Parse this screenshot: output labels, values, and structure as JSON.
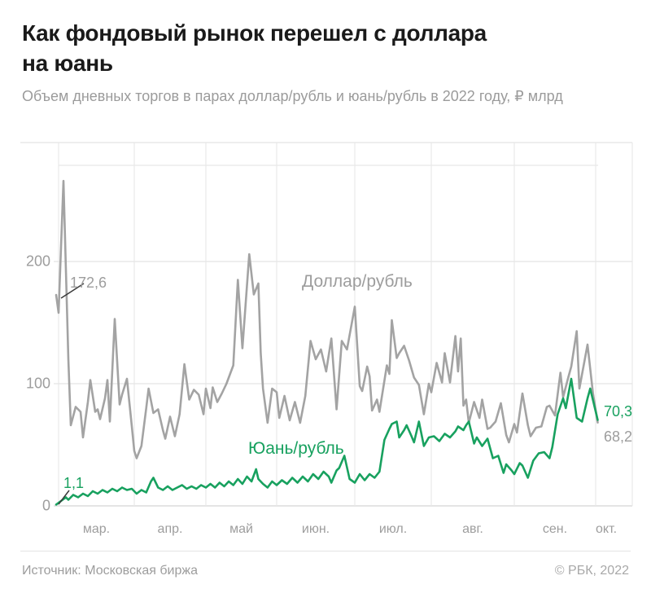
{
  "header": {
    "title_line1": "Как фондовый рынок перешел с доллара",
    "title_line2": "на юань",
    "subtitle": "Объем дневных торгов в парах доллар/рубль и юань/рубль в 2022 году, ₽ млрд"
  },
  "footer": {
    "source": "Источник: Московская биржа",
    "copyright": "© РБК, 2022"
  },
  "colors": {
    "usd_line": "#a3a3a3",
    "cny_line": "#18a15f",
    "grid": "#e8e8e8",
    "axis_text": "#9d9d9d",
    "title_text": "#1a1a1a",
    "callout_line": "#3a3a3a"
  },
  "chart_data": {
    "type": "line",
    "title": "Как фондовый рынок перешел с доллара на юань",
    "subtitle": "Объем дневных торгов в парах доллар/рубль и юань/рубль в 2022 году, ₽ млрд",
    "ylabel": "₽ млрд",
    "grid": true,
    "legend_position": "inline-labels",
    "x_unit": "days since 2022-02-28",
    "ylim": [
      0,
      300
    ],
    "y_ticks": [
      0,
      100,
      200
    ],
    "x_month_ticks": [
      {
        "label": "мар.",
        "day": 1
      },
      {
        "label": "апр.",
        "day": 32
      },
      {
        "label": "май",
        "day": 62
      },
      {
        "label": "июн.",
        "day": 93
      },
      {
        "label": "июл.",
        "day": 123
      },
      {
        "label": "авг.",
        "day": 154
      },
      {
        "label": "сен.",
        "day": 185
      },
      {
        "label": "окт.",
        "day": 215
      }
    ],
    "annotations": {
      "usd_first_label": "172,6",
      "cny_first_label": "1,1",
      "cny_last_label": "70,3",
      "usd_last_label": "68,2"
    },
    "series": [
      {
        "name": "Доллар/рубль",
        "color": "#a3a3a3",
        "first_value": 172.6,
        "last_value": 68.2,
        "points": [
          [
            0,
            172.6
          ],
          [
            1,
            158
          ],
          [
            3,
            266
          ],
          [
            5,
            120
          ],
          [
            6,
            66
          ],
          [
            8,
            81
          ],
          [
            10,
            77
          ],
          [
            11,
            56
          ],
          [
            13,
            85
          ],
          [
            14,
            103
          ],
          [
            16,
            77
          ],
          [
            17,
            79
          ],
          [
            18,
            71
          ],
          [
            20,
            88
          ],
          [
            21,
            103
          ],
          [
            22,
            69
          ],
          [
            24,
            153
          ],
          [
            26,
            83
          ],
          [
            27,
            91
          ],
          [
            29,
            104
          ],
          [
            31,
            65
          ],
          [
            32,
            45
          ],
          [
            33,
            39
          ],
          [
            35,
            49
          ],
          [
            37,
            80
          ],
          [
            38,
            96
          ],
          [
            40,
            76
          ],
          [
            42,
            79
          ],
          [
            44,
            62
          ],
          [
            45,
            55
          ],
          [
            47,
            73
          ],
          [
            49,
            57
          ],
          [
            51,
            75
          ],
          [
            53,
            116
          ],
          [
            55,
            87
          ],
          [
            57,
            95
          ],
          [
            59,
            91
          ],
          [
            61,
            75
          ],
          [
            62,
            96
          ],
          [
            64,
            80
          ],
          [
            65,
            97
          ],
          [
            67,
            85
          ],
          [
            69,
            92
          ],
          [
            71,
            100
          ],
          [
            74,
            115
          ],
          [
            76,
            185
          ],
          [
            78,
            129
          ],
          [
            81,
            206
          ],
          [
            83,
            173
          ],
          [
            85,
            182
          ],
          [
            86,
            125
          ],
          [
            87,
            96
          ],
          [
            89,
            68
          ],
          [
            91,
            96
          ],
          [
            93,
            93
          ],
          [
            94,
            72
          ],
          [
            96,
            90
          ],
          [
            98,
            70
          ],
          [
            100,
            85
          ],
          [
            102,
            68
          ],
          [
            104,
            90
          ],
          [
            106,
            135
          ],
          [
            108,
            120
          ],
          [
            110,
            128
          ],
          [
            112,
            110
          ],
          [
            114,
            137
          ],
          [
            116,
            79
          ],
          [
            118,
            135
          ],
          [
            120,
            128
          ],
          [
            123,
            163
          ],
          [
            125,
            98
          ],
          [
            126,
            94
          ],
          [
            128,
            114
          ],
          [
            129,
            106
          ],
          [
            130,
            78
          ],
          [
            132,
            87
          ],
          [
            133,
            77
          ],
          [
            136,
            115
          ],
          [
            137,
            108
          ],
          [
            138,
            152
          ],
          [
            140,
            121
          ],
          [
            141,
            125
          ],
          [
            143,
            131
          ],
          [
            145,
            119
          ],
          [
            147,
            105
          ],
          [
            149,
            99
          ],
          [
            151,
            75
          ],
          [
            153,
            100
          ],
          [
            154,
            93
          ],
          [
            156,
            117
          ],
          [
            158,
            101
          ],
          [
            159,
            125
          ],
          [
            161,
            101
          ],
          [
            163,
            139
          ],
          [
            164,
            110
          ],
          [
            165,
            137
          ],
          [
            166,
            82
          ],
          [
            167,
            87
          ],
          [
            168,
            68
          ],
          [
            170,
            85
          ],
          [
            172,
            72
          ],
          [
            173,
            87
          ],
          [
            175,
            63
          ],
          [
            176,
            64
          ],
          [
            178,
            69
          ],
          [
            180,
            84
          ],
          [
            182,
            58
          ],
          [
            183,
            52
          ],
          [
            185,
            67
          ],
          [
            186,
            60
          ],
          [
            188,
            92
          ],
          [
            190,
            66
          ],
          [
            191,
            57
          ],
          [
            193,
            64
          ],
          [
            195,
            65
          ],
          [
            197,
            81
          ],
          [
            198,
            82
          ],
          [
            200,
            74
          ],
          [
            202,
            109
          ],
          [
            203,
            89
          ],
          [
            205,
            106
          ],
          [
            206,
            114
          ],
          [
            208,
            143
          ],
          [
            209,
            96
          ],
          [
            212,
            132
          ],
          [
            214,
            92
          ],
          [
            216,
            68.2
          ]
        ]
      },
      {
        "name": "Юань/рубль",
        "color": "#18a15f",
        "first_value": 1.1,
        "last_value": 70.3,
        "points": [
          [
            0,
            1.1
          ],
          [
            2,
            4
          ],
          [
            4,
            7
          ],
          [
            5,
            5
          ],
          [
            7,
            9
          ],
          [
            9,
            7
          ],
          [
            11,
            10
          ],
          [
            13,
            8
          ],
          [
            15,
            12
          ],
          [
            17,
            10
          ],
          [
            19,
            13
          ],
          [
            21,
            11
          ],
          [
            23,
            14
          ],
          [
            25,
            12
          ],
          [
            27,
            15
          ],
          [
            29,
            13
          ],
          [
            31,
            14
          ],
          [
            33,
            10
          ],
          [
            35,
            13
          ],
          [
            37,
            11
          ],
          [
            39,
            20
          ],
          [
            40,
            23
          ],
          [
            42,
            15
          ],
          [
            44,
            13
          ],
          [
            46,
            16
          ],
          [
            48,
            13
          ],
          [
            50,
            15
          ],
          [
            52,
            17
          ],
          [
            54,
            14
          ],
          [
            56,
            16
          ],
          [
            58,
            14
          ],
          [
            60,
            17
          ],
          [
            62,
            15
          ],
          [
            64,
            18
          ],
          [
            66,
            15
          ],
          [
            68,
            19
          ],
          [
            70,
            16
          ],
          [
            72,
            20
          ],
          [
            74,
            17
          ],
          [
            76,
            22
          ],
          [
            78,
            18
          ],
          [
            80,
            24
          ],
          [
            82,
            20
          ],
          [
            84,
            30
          ],
          [
            85,
            22
          ],
          [
            87,
            18
          ],
          [
            89,
            15
          ],
          [
            91,
            20
          ],
          [
            93,
            17
          ],
          [
            95,
            21
          ],
          [
            97,
            18
          ],
          [
            99,
            23
          ],
          [
            101,
            19
          ],
          [
            103,
            24
          ],
          [
            105,
            20
          ],
          [
            107,
            26
          ],
          [
            109,
            22
          ],
          [
            111,
            28
          ],
          [
            113,
            24
          ],
          [
            114,
            19
          ],
          [
            116,
            29
          ],
          [
            117,
            31
          ],
          [
            119,
            41
          ],
          [
            121,
            22
          ],
          [
            123,
            19
          ],
          [
            125,
            26
          ],
          [
            127,
            21
          ],
          [
            129,
            26
          ],
          [
            131,
            23
          ],
          [
            133,
            28
          ],
          [
            135,
            54
          ],
          [
            137,
            63
          ],
          [
            138,
            67
          ],
          [
            140,
            69
          ],
          [
            141,
            56
          ],
          [
            143,
            62
          ],
          [
            144,
            66
          ],
          [
            146,
            57
          ],
          [
            147,
            52
          ],
          [
            149,
            69
          ],
          [
            151,
            49
          ],
          [
            153,
            56
          ],
          [
            155,
            57
          ],
          [
            157,
            53
          ],
          [
            159,
            59
          ],
          [
            161,
            56
          ],
          [
            163,
            61
          ],
          [
            164,
            65
          ],
          [
            166,
            62
          ],
          [
            167,
            66
          ],
          [
            168,
            69
          ],
          [
            170,
            51
          ],
          [
            171,
            56
          ],
          [
            173,
            49
          ],
          [
            175,
            55
          ],
          [
            177,
            39
          ],
          [
            179,
            41
          ],
          [
            181,
            27
          ],
          [
            182,
            34
          ],
          [
            184,
            29
          ],
          [
            185,
            26
          ],
          [
            187,
            35
          ],
          [
            188,
            33
          ],
          [
            190,
            23
          ],
          [
            192,
            37
          ],
          [
            194,
            43
          ],
          [
            196,
            44
          ],
          [
            198,
            39
          ],
          [
            199,
            48
          ],
          [
            201,
            75
          ],
          [
            203,
            88
          ],
          [
            204,
            80
          ],
          [
            206,
            104
          ],
          [
            208,
            72
          ],
          [
            210,
            69
          ],
          [
            212,
            88
          ],
          [
            213,
            96
          ],
          [
            216,
            70.3
          ]
        ]
      }
    ]
  }
}
